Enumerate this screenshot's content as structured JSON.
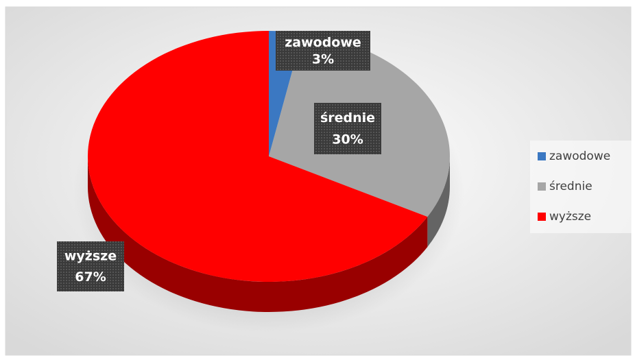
{
  "chart_data": {
    "type": "pie",
    "categories": [
      "zawodowe",
      "średnie",
      "wyższe"
    ],
    "values": [
      3,
      30,
      67
    ],
    "value_labels": [
      "3%",
      "30%",
      "67%"
    ],
    "colors": [
      "#3b78c2",
      "#a6a6a6",
      "#ff0000"
    ],
    "legend": "right"
  }
}
